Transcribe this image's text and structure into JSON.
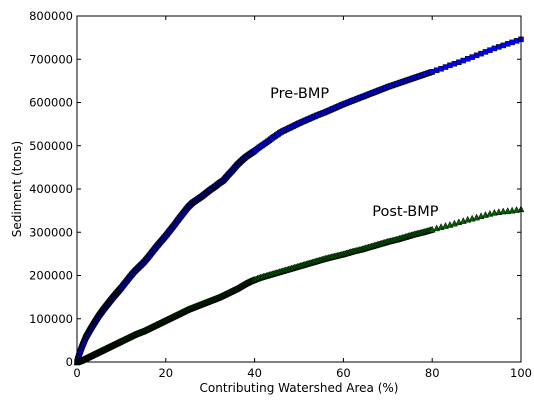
{
  "chart_data": {
    "type": "scatter",
    "xlabel": "Contributing Watershed Area (%)",
    "ylabel": "Sediment (tons)",
    "xlim": [
      0,
      100
    ],
    "ylim": [
      0,
      800000
    ],
    "x_ticks": [
      0,
      20,
      40,
      60,
      80,
      100
    ],
    "y_ticks": [
      0,
      100000,
      200000,
      300000,
      400000,
      500000,
      600000,
      700000,
      800000
    ],
    "grid": false,
    "annotations": [
      {
        "text": "Pre-BMP",
        "x": 43.5,
        "y": 610000
      },
      {
        "text": "Post-BMP",
        "x": 66.5,
        "y": 337000
      }
    ],
    "series": [
      {
        "name": "Pre-BMP",
        "marker": "square",
        "color": "#0000ff",
        "edge_color": "#000000",
        "x": [
          0,
          0.5,
          1,
          1.5,
          2,
          3,
          4,
          5,
          6,
          7,
          8,
          9,
          10,
          11,
          12,
          13,
          14,
          15,
          16,
          17,
          18,
          19,
          20,
          21,
          22,
          23,
          24,
          25,
          26,
          27,
          28,
          29,
          30,
          31,
          32,
          33,
          34,
          35,
          36,
          37,
          38,
          39,
          40,
          41,
          42,
          43,
          44,
          45,
          46,
          47,
          48,
          49,
          50,
          52,
          54,
          56,
          58,
          60,
          62,
          64,
          66,
          68,
          70,
          72,
          74,
          76,
          78,
          80,
          82,
          84,
          86,
          88,
          90,
          92,
          94,
          96,
          98,
          100
        ],
        "y": [
          0,
          18000,
          32000,
          45000,
          57000,
          75000,
          92000,
          108000,
          122000,
          135000,
          148000,
          160000,
          172000,
          185000,
          198000,
          210000,
          220000,
          230000,
          242000,
          255000,
          268000,
          280000,
          292000,
          305000,
          318000,
          332000,
          345000,
          358000,
          368000,
          375000,
          382000,
          390000,
          398000,
          405000,
          413000,
          420000,
          432000,
          443000,
          455000,
          465000,
          474000,
          481000,
          488000,
          496000,
          503000,
          510000,
          518000,
          525000,
          532000,
          537000,
          542000,
          547000,
          552000,
          561000,
          570000,
          578000,
          587000,
          596000,
          604000,
          612000,
          620000,
          628000,
          636000,
          643000,
          650000,
          657000,
          664000,
          671000,
          678000,
          686000,
          693000,
          701000,
          709000,
          717000,
          725000,
          732000,
          739000,
          746000
        ]
      },
      {
        "name": "Post-BMP",
        "marker": "triangle",
        "color": "#006400",
        "edge_color": "#000000",
        "x": [
          0,
          1,
          2,
          3,
          4,
          5,
          6,
          7,
          8,
          9,
          10,
          11,
          12,
          13,
          14,
          15,
          16,
          17,
          18,
          19,
          20,
          21,
          22,
          23,
          24,
          25,
          26,
          27,
          28,
          29,
          30,
          31,
          32,
          33,
          34,
          35,
          36,
          37,
          38,
          39,
          40,
          41,
          42,
          43,
          44,
          45,
          46,
          47,
          48,
          49,
          50,
          52,
          54,
          56,
          58,
          60,
          62,
          64,
          66,
          68,
          70,
          72,
          74,
          76,
          78,
          80,
          82,
          84,
          86,
          88,
          90,
          92,
          94,
          96,
          98,
          100
        ],
        "y": [
          0,
          4000,
          9000,
          14000,
          19000,
          24000,
          29000,
          34000,
          39000,
          44000,
          49000,
          54000,
          59000,
          64000,
          68000,
          72000,
          77000,
          82000,
          87000,
          92000,
          97000,
          102000,
          107000,
          112000,
          117000,
          122000,
          126000,
          130000,
          134000,
          138000,
          142000,
          146000,
          150000,
          155000,
          160000,
          165000,
          170000,
          176000,
          182000,
          187000,
          191000,
          195000,
          198000,
          201000,
          204000,
          207000,
          210000,
          213000,
          216000,
          219000,
          222000,
          228000,
          234000,
          240000,
          245000,
          250000,
          256000,
          261000,
          267000,
          273000,
          279000,
          284000,
          290000,
          296000,
          301000,
          307000,
          313000,
          318000,
          324000,
          330000,
          335000,
          341000,
          346000,
          349000,
          351000,
          354000
        ]
      }
    ]
  }
}
